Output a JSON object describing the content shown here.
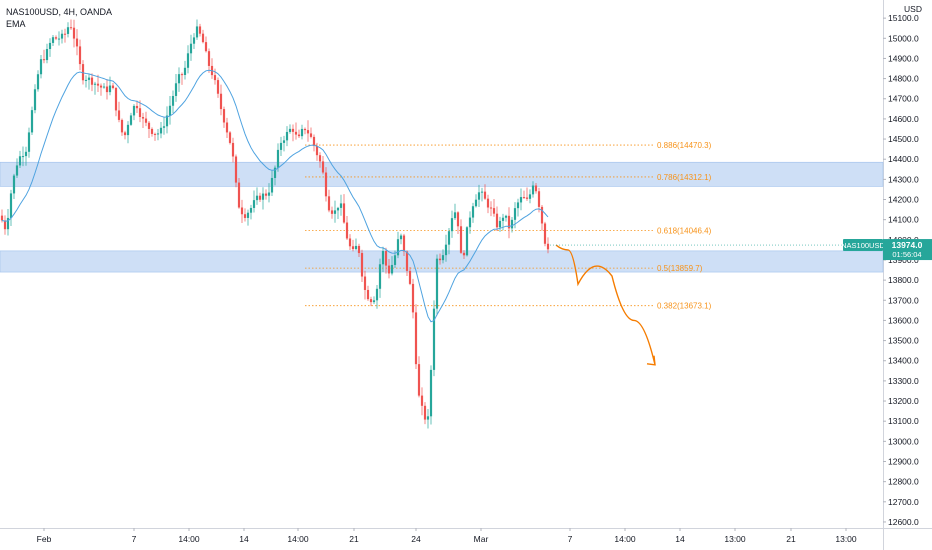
{
  "header": {
    "symbol_line": "NAS100USD, 4H, OANDA",
    "indicator": "EMA"
  },
  "axis": {
    "currency": "USD",
    "price_ticks": [
      15100,
      15000,
      14900,
      14800,
      14700,
      14600,
      14500,
      14400,
      14300,
      14200,
      14100,
      14000,
      13900,
      13800,
      13700,
      13600,
      13500,
      13400,
      13300,
      13200,
      13100,
      13000,
      12900,
      12800,
      12700,
      12600
    ],
    "time_ticks": [
      "Feb",
      "7",
      "14:00",
      "14",
      "14:00",
      "21",
      "24",
      "Mar",
      "7",
      "14:00",
      "14",
      "13:00",
      "21",
      "13:00"
    ]
  },
  "price_tag": {
    "symbol": "NAS100USD",
    "price": "13974.0",
    "countdown": "01:56:04",
    "color": "#26a69a"
  },
  "colors": {
    "up": "#26a69a",
    "down": "#ef5350",
    "wick": "#787b86",
    "ema": "#4fa3e0",
    "zone": "#c5d9f5",
    "fib": "#f7931a",
    "projection": "#f57c00"
  },
  "chart_data": {
    "type": "candlestick",
    "ylim": [
      12570,
      15190
    ],
    "zones": [
      {
        "from": 14265,
        "to": 14385
      },
      {
        "from": 13840,
        "to": 13945
      }
    ],
    "fib_levels": [
      {
        "label": "0.886(14470.3)",
        "value": 14470.3
      },
      {
        "label": "0.786(14312.1)",
        "value": 14312.1
      },
      {
        "label": "0.618(14046.4)",
        "value": 14046.4
      },
      {
        "label": "0.5(13859.7)",
        "value": 13859.7
      },
      {
        "label": "0.382(13673.1)",
        "value": 13673.1
      }
    ],
    "projection": [
      13974,
      13950,
      13780,
      13870,
      13820,
      13600,
      13380
    ]
  }
}
